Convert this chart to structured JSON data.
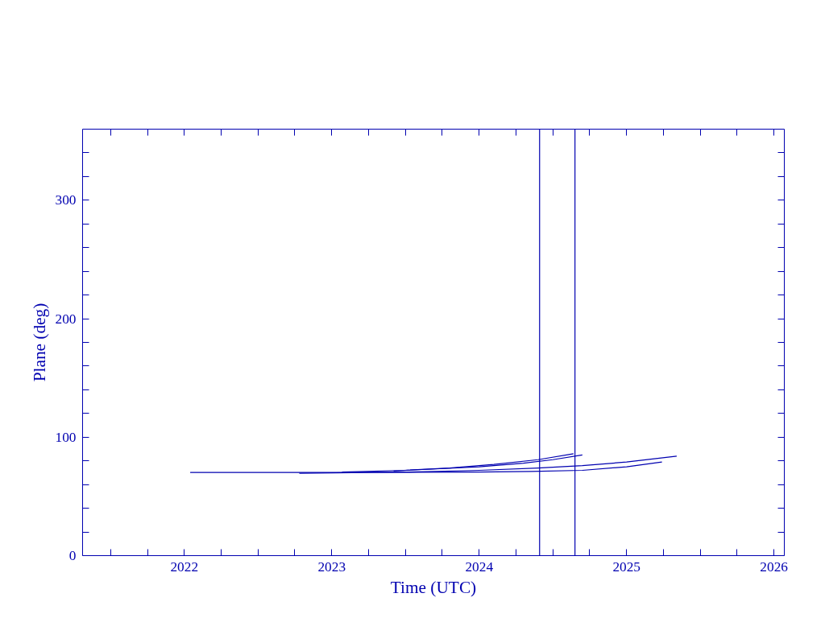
{
  "chart_data": {
    "type": "line",
    "xlabel": "Time (UTC)",
    "ylabel": "Plane (deg)",
    "xlim": [
      2021.31,
      2026.07
    ],
    "ylim": [
      0,
      360
    ],
    "xticks": [
      {
        "value": 2021.5,
        "label": null
      },
      {
        "value": 2021.75,
        "label": null
      },
      2022,
      {
        "value": 2022.25,
        "label": null
      },
      {
        "value": 2022.5,
        "label": null
      },
      {
        "value": 2022.75,
        "label": null
      },
      2023,
      {
        "value": 2023.25,
        "label": null
      },
      {
        "value": 2023.5,
        "label": null
      },
      {
        "value": 2023.75,
        "label": null
      },
      2024,
      {
        "value": 2024.25,
        "label": null
      },
      {
        "value": 2024.5,
        "label": null
      },
      {
        "value": 2024.75,
        "label": null
      },
      2025,
      {
        "value": 2025.25,
        "label": null
      },
      {
        "value": 2025.5,
        "label": null
      },
      {
        "value": 2025.75,
        "label": null
      },
      2026
    ],
    "yticks": [
      0,
      {
        "value": 20,
        "label": null
      },
      {
        "value": 40,
        "label": null
      },
      {
        "value": 60,
        "label": null
      },
      {
        "value": 80,
        "label": null
      },
      100,
      {
        "value": 120,
        "label": null
      },
      {
        "value": 140,
        "label": null
      },
      {
        "value": 160,
        "label": null
      },
      {
        "value": 180,
        "label": null
      },
      200,
      {
        "value": 220,
        "label": null
      },
      {
        "value": 240,
        "label": null
      },
      {
        "value": 260,
        "label": null
      },
      {
        "value": 280,
        "label": null
      },
      300,
      {
        "value": 320,
        "label": null
      },
      {
        "value": 340,
        "label": null
      }
    ],
    "grid": false,
    "marker": "none",
    "line_style": "solid",
    "series": [
      {
        "color": "#0000b0",
        "x": [
          2022.04,
          2023,
          2024,
          2024.35,
          2024.7,
          2025.0,
          2025.24
        ],
        "values": [
          70.2,
          70.2,
          70.5,
          71,
          72,
          75,
          79
        ]
      },
      {
        "color": "#0000b0",
        "x": [
          2022.78,
          2023.5,
          2024,
          2024.4,
          2024.7,
          2025.0,
          2025.34
        ],
        "values": [
          69.6,
          70.5,
          72,
          74,
          76,
          79,
          84
        ]
      },
      {
        "color": "#0000b0",
        "x": [
          2023.07,
          2023.5,
          2024,
          2024.3,
          2024.5,
          2024.7
        ],
        "values": [
          70.5,
          72,
          75,
          78,
          81,
          85
        ]
      },
      {
        "color": "#0000b0",
        "x": [
          2023.42,
          2023.8,
          2024.1,
          2024.4,
          2024.64
        ],
        "values": [
          71.5,
          74,
          77,
          81,
          86
        ]
      }
    ],
    "ref_lines": [
      {
        "axis": "x",
        "value": 2024.41,
        "color": "#0000b0"
      },
      {
        "axis": "x",
        "value": 2024.65,
        "color": "#0000b0"
      }
    ]
  }
}
